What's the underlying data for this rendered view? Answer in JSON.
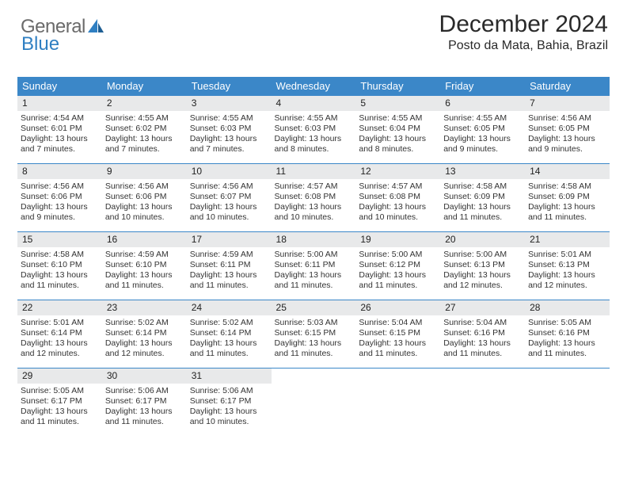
{
  "logo": {
    "general": "General",
    "blue": "Blue"
  },
  "title": "December 2024",
  "location": "Posto da Mata, Bahia, Brazil",
  "colors": {
    "header_blue": "#3b87c8",
    "date_bg": "#e8e9ea",
    "logo_gray": "#6a6a6a",
    "logo_blue": "#2f7fc2"
  },
  "weekdays": [
    "Sunday",
    "Monday",
    "Tuesday",
    "Wednesday",
    "Thursday",
    "Friday",
    "Saturday"
  ],
  "weeks": [
    [
      {
        "n": "1",
        "sr": "Sunrise: 4:54 AM",
        "ss": "Sunset: 6:01 PM",
        "d1": "Daylight: 13 hours",
        "d2": "and 7 minutes."
      },
      {
        "n": "2",
        "sr": "Sunrise: 4:55 AM",
        "ss": "Sunset: 6:02 PM",
        "d1": "Daylight: 13 hours",
        "d2": "and 7 minutes."
      },
      {
        "n": "3",
        "sr": "Sunrise: 4:55 AM",
        "ss": "Sunset: 6:03 PM",
        "d1": "Daylight: 13 hours",
        "d2": "and 7 minutes."
      },
      {
        "n": "4",
        "sr": "Sunrise: 4:55 AM",
        "ss": "Sunset: 6:03 PM",
        "d1": "Daylight: 13 hours",
        "d2": "and 8 minutes."
      },
      {
        "n": "5",
        "sr": "Sunrise: 4:55 AM",
        "ss": "Sunset: 6:04 PM",
        "d1": "Daylight: 13 hours",
        "d2": "and 8 minutes."
      },
      {
        "n": "6",
        "sr": "Sunrise: 4:55 AM",
        "ss": "Sunset: 6:05 PM",
        "d1": "Daylight: 13 hours",
        "d2": "and 9 minutes."
      },
      {
        "n": "7",
        "sr": "Sunrise: 4:56 AM",
        "ss": "Sunset: 6:05 PM",
        "d1": "Daylight: 13 hours",
        "d2": "and 9 minutes."
      }
    ],
    [
      {
        "n": "8",
        "sr": "Sunrise: 4:56 AM",
        "ss": "Sunset: 6:06 PM",
        "d1": "Daylight: 13 hours",
        "d2": "and 9 minutes."
      },
      {
        "n": "9",
        "sr": "Sunrise: 4:56 AM",
        "ss": "Sunset: 6:06 PM",
        "d1": "Daylight: 13 hours",
        "d2": "and 10 minutes."
      },
      {
        "n": "10",
        "sr": "Sunrise: 4:56 AM",
        "ss": "Sunset: 6:07 PM",
        "d1": "Daylight: 13 hours",
        "d2": "and 10 minutes."
      },
      {
        "n": "11",
        "sr": "Sunrise: 4:57 AM",
        "ss": "Sunset: 6:08 PM",
        "d1": "Daylight: 13 hours",
        "d2": "and 10 minutes."
      },
      {
        "n": "12",
        "sr": "Sunrise: 4:57 AM",
        "ss": "Sunset: 6:08 PM",
        "d1": "Daylight: 13 hours",
        "d2": "and 10 minutes."
      },
      {
        "n": "13",
        "sr": "Sunrise: 4:58 AM",
        "ss": "Sunset: 6:09 PM",
        "d1": "Daylight: 13 hours",
        "d2": "and 11 minutes."
      },
      {
        "n": "14",
        "sr": "Sunrise: 4:58 AM",
        "ss": "Sunset: 6:09 PM",
        "d1": "Daylight: 13 hours",
        "d2": "and 11 minutes."
      }
    ],
    [
      {
        "n": "15",
        "sr": "Sunrise: 4:58 AM",
        "ss": "Sunset: 6:10 PM",
        "d1": "Daylight: 13 hours",
        "d2": "and 11 minutes."
      },
      {
        "n": "16",
        "sr": "Sunrise: 4:59 AM",
        "ss": "Sunset: 6:10 PM",
        "d1": "Daylight: 13 hours",
        "d2": "and 11 minutes."
      },
      {
        "n": "17",
        "sr": "Sunrise: 4:59 AM",
        "ss": "Sunset: 6:11 PM",
        "d1": "Daylight: 13 hours",
        "d2": "and 11 minutes."
      },
      {
        "n": "18",
        "sr": "Sunrise: 5:00 AM",
        "ss": "Sunset: 6:11 PM",
        "d1": "Daylight: 13 hours",
        "d2": "and 11 minutes."
      },
      {
        "n": "19",
        "sr": "Sunrise: 5:00 AM",
        "ss": "Sunset: 6:12 PM",
        "d1": "Daylight: 13 hours",
        "d2": "and 11 minutes."
      },
      {
        "n": "20",
        "sr": "Sunrise: 5:00 AM",
        "ss": "Sunset: 6:13 PM",
        "d1": "Daylight: 13 hours",
        "d2": "and 12 minutes."
      },
      {
        "n": "21",
        "sr": "Sunrise: 5:01 AM",
        "ss": "Sunset: 6:13 PM",
        "d1": "Daylight: 13 hours",
        "d2": "and 12 minutes."
      }
    ],
    [
      {
        "n": "22",
        "sr": "Sunrise: 5:01 AM",
        "ss": "Sunset: 6:14 PM",
        "d1": "Daylight: 13 hours",
        "d2": "and 12 minutes."
      },
      {
        "n": "23",
        "sr": "Sunrise: 5:02 AM",
        "ss": "Sunset: 6:14 PM",
        "d1": "Daylight: 13 hours",
        "d2": "and 12 minutes."
      },
      {
        "n": "24",
        "sr": "Sunrise: 5:02 AM",
        "ss": "Sunset: 6:14 PM",
        "d1": "Daylight: 13 hours",
        "d2": "and 11 minutes."
      },
      {
        "n": "25",
        "sr": "Sunrise: 5:03 AM",
        "ss": "Sunset: 6:15 PM",
        "d1": "Daylight: 13 hours",
        "d2": "and 11 minutes."
      },
      {
        "n": "26",
        "sr": "Sunrise: 5:04 AM",
        "ss": "Sunset: 6:15 PM",
        "d1": "Daylight: 13 hours",
        "d2": "and 11 minutes."
      },
      {
        "n": "27",
        "sr": "Sunrise: 5:04 AM",
        "ss": "Sunset: 6:16 PM",
        "d1": "Daylight: 13 hours",
        "d2": "and 11 minutes."
      },
      {
        "n": "28",
        "sr": "Sunrise: 5:05 AM",
        "ss": "Sunset: 6:16 PM",
        "d1": "Daylight: 13 hours",
        "d2": "and 11 minutes."
      }
    ],
    [
      {
        "n": "29",
        "sr": "Sunrise: 5:05 AM",
        "ss": "Sunset: 6:17 PM",
        "d1": "Daylight: 13 hours",
        "d2": "and 11 minutes."
      },
      {
        "n": "30",
        "sr": "Sunrise: 5:06 AM",
        "ss": "Sunset: 6:17 PM",
        "d1": "Daylight: 13 hours",
        "d2": "and 11 minutes."
      },
      {
        "n": "31",
        "sr": "Sunrise: 5:06 AM",
        "ss": "Sunset: 6:17 PM",
        "d1": "Daylight: 13 hours",
        "d2": "and 10 minutes."
      },
      {
        "empty": true
      },
      {
        "empty": true
      },
      {
        "empty": true
      },
      {
        "empty": true
      }
    ]
  ]
}
